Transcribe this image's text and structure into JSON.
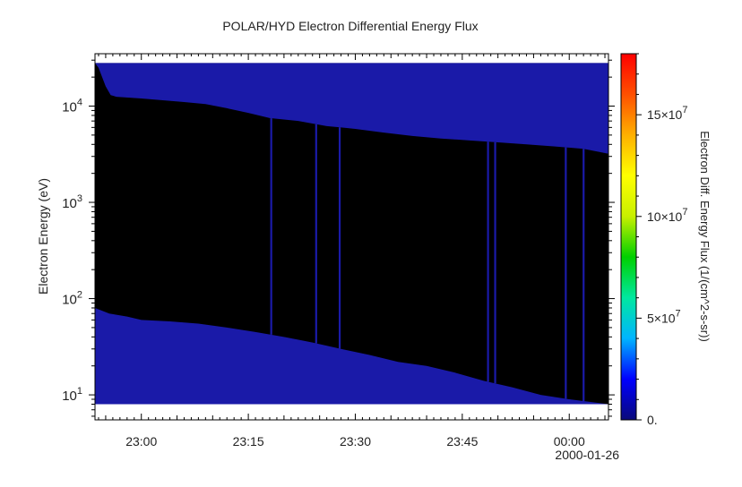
{
  "chart_data": {
    "type": "heatmap",
    "title": "POLAR/HYD  Electron Differential Energy Flux",
    "xlabel": "",
    "ylabel": "Electron Energy (eV)",
    "colorbar_label": "Electron Diff. Energy Flux (1/(cm^2-s-sr))",
    "x_tick_labels": [
      "23:00",
      "23:15",
      "23:30",
      "23:45",
      "00:00"
    ],
    "x_tick_minutes": [
      0,
      15,
      30,
      45,
      60
    ],
    "x_range_minutes": [
      -6.5,
      65.5
    ],
    "date_label": "2000-01-26",
    "y_scale": "log",
    "y_range": [
      5.5,
      35000
    ],
    "y_tick_labels": [
      {
        "base": "10",
        "exp": "1",
        "value": 10
      },
      {
        "base": "10",
        "exp": "2",
        "value": 100
      },
      {
        "base": "10",
        "exp": "3",
        "value": 1000
      },
      {
        "base": "10",
        "exp": "4",
        "value": 10000
      }
    ],
    "data_energy_range": [
      8,
      28000
    ],
    "data_time_range_minutes": [
      -6.5,
      65.5
    ],
    "colorbar_range": [
      0,
      180000000
    ],
    "colorbar_ticks": [
      {
        "value": 0,
        "label": "0.",
        "exp": ""
      },
      {
        "value": 50000000,
        "label": "5×10",
        "exp": "7"
      },
      {
        "value": 100000000,
        "label": "10×10",
        "exp": "7"
      },
      {
        "value": 150000000,
        "label": "15×10",
        "exp": "7"
      }
    ],
    "colors": {
      "low_flux": "#1a1aa8",
      "no_data": "#000000",
      "colormap": [
        "#0a0a7a",
        "#0000ff",
        "#00b4ff",
        "#00e8a0",
        "#00d000",
        "#c8f000",
        "#ffff00",
        "#ffb000",
        "#ff5000",
        "#ff0000"
      ]
    },
    "upper_boundary_eV": [
      [
        -6.5,
        28000
      ],
      [
        -6.0,
        25000
      ],
      [
        -5.5,
        20000
      ],
      [
        -5.0,
        16000
      ],
      [
        -4.3,
        13000
      ],
      [
        -3.5,
        12500
      ],
      [
        0,
        12000
      ],
      [
        3,
        11500
      ],
      [
        6,
        11000
      ],
      [
        9,
        10500
      ],
      [
        12,
        9500
      ],
      [
        15,
        8500
      ],
      [
        18,
        7500
      ],
      [
        22,
        7000
      ],
      [
        26,
        6200
      ],
      [
        30,
        5800
      ],
      [
        34,
        5300
      ],
      [
        38,
        4900
      ],
      [
        42,
        4600
      ],
      [
        46,
        4400
      ],
      [
        50,
        4200
      ],
      [
        54,
        4000
      ],
      [
        58,
        3800
      ],
      [
        62,
        3600
      ],
      [
        65.5,
        3200
      ]
    ],
    "lower_boundary_eV": [
      [
        -6.5,
        80
      ],
      [
        -4.5,
        70
      ],
      [
        -2,
        65
      ],
      [
        0,
        60
      ],
      [
        4,
        58
      ],
      [
        8,
        55
      ],
      [
        12,
        50
      ],
      [
        16,
        45
      ],
      [
        20,
        40
      ],
      [
        24,
        35
      ],
      [
        28,
        30
      ],
      [
        32,
        26
      ],
      [
        36,
        22
      ],
      [
        40,
        20
      ],
      [
        44,
        17
      ],
      [
        48,
        14
      ],
      [
        52,
        12
      ],
      [
        56,
        10
      ],
      [
        60,
        9
      ],
      [
        65.5,
        8
      ]
    ],
    "vertical_streaks_minutes": [
      18.2,
      24.5,
      27.8,
      48.6,
      49.6,
      59.5,
      62.0
    ]
  }
}
